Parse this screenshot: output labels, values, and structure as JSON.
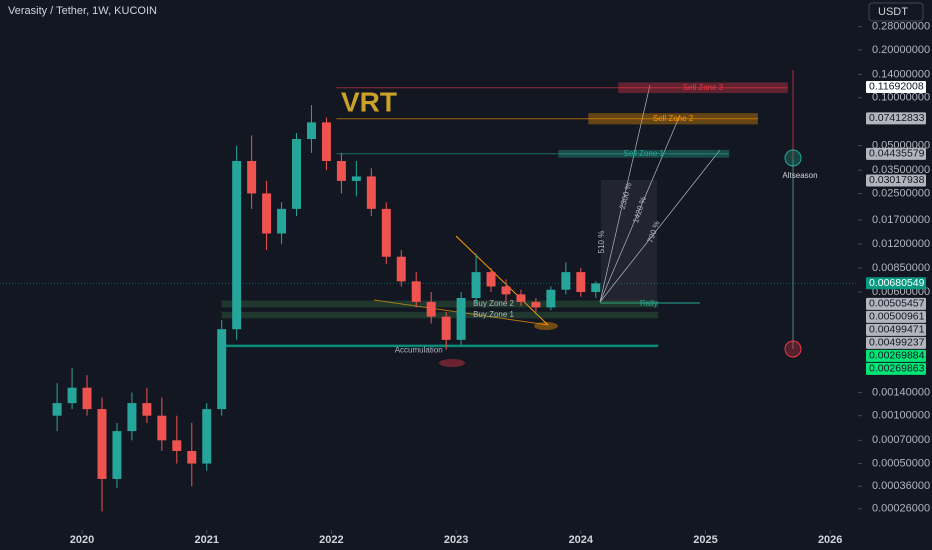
{
  "chart_data": {
    "type": "candlestick",
    "title": "Verasity / Tether, 1W, KUCOIN",
    "currency": "USDT",
    "symbol_label": "VRT",
    "log_scale": true,
    "up_color": "#26a69a",
    "down_color": "#ef5350",
    "xlim": [
      2019.342,
      2026.223
    ],
    "xticks": [
      2020,
      2021,
      2022,
      2023,
      2024,
      2025,
      2026
    ],
    "ylim": [
      0.000191,
      0.412
    ],
    "yticks": [
      {
        "value": 0.28,
        "label": "0.28000000"
      },
      {
        "value": 0.2,
        "label": "0.20000000"
      },
      {
        "value": 0.14,
        "label": "0.14000000"
      },
      {
        "value": 0.1,
        "label": "0.10000000"
      },
      {
        "value": 0.05,
        "label": "0.05000000"
      },
      {
        "value": 0.035,
        "label": "0.03500000"
      },
      {
        "value": 0.025,
        "label": "0.02500000"
      },
      {
        "value": 0.017,
        "label": "0.01700000"
      },
      {
        "value": 0.012,
        "label": "0.01200000"
      },
      {
        "value": 0.0085,
        "label": "0.00850000"
      },
      {
        "value": 0.006,
        "label": "0.00600000"
      },
      {
        "value": 0.0014,
        "label": "0.00140000"
      },
      {
        "value": 0.001,
        "label": "0.00100000"
      },
      {
        "value": 0.0007,
        "label": "0.00070000"
      },
      {
        "value": 0.0005,
        "label": "0.00050000"
      },
      {
        "value": 0.00036,
        "label": "0.00036000"
      },
      {
        "value": 0.00026,
        "label": "0.00026000"
      }
    ],
    "x": [
      2019.8,
      2019.92,
      2020.04,
      2020.16,
      2020.28,
      2020.4,
      2020.52,
      2020.64,
      2020.76,
      2020.88,
      2021.0,
      2021.12,
      2021.24,
      2021.36,
      2021.48,
      2021.6,
      2021.72,
      2021.84,
      2021.96,
      2022.08,
      2022.2,
      2022.32,
      2022.44,
      2022.56,
      2022.68,
      2022.8,
      2022.92,
      2023.04,
      2023.16,
      2023.28,
      2023.4,
      2023.52,
      2023.64,
      2023.76,
      2023.88,
      2024.0,
      2024.12
    ],
    "open": [
      0.001,
      0.0012,
      0.0015,
      0.0011,
      0.0004,
      0.0008,
      0.0012,
      0.001,
      0.0007,
      0.0006,
      0.0005,
      0.0011,
      0.0035,
      0.04,
      0.025,
      0.014,
      0.02,
      0.055,
      0.07,
      0.04,
      0.03,
      0.032,
      0.02,
      0.01,
      0.007,
      0.0052,
      0.0042,
      0.003,
      0.0055,
      0.008,
      0.0065,
      0.0058,
      0.0052,
      0.0048,
      0.0062,
      0.008,
      0.006
    ],
    "high": [
      0.0016,
      0.002,
      0.0018,
      0.0013,
      0.0009,
      0.0014,
      0.0015,
      0.0013,
      0.001,
      0.0009,
      0.0012,
      0.004,
      0.05,
      0.058,
      0.03,
      0.022,
      0.06,
      0.09,
      0.075,
      0.045,
      0.04,
      0.036,
      0.022,
      0.011,
      0.008,
      0.006,
      0.0045,
      0.006,
      0.0105,
      0.0085,
      0.0072,
      0.0062,
      0.0055,
      0.0065,
      0.0092,
      0.0085,
      0.007
    ],
    "low": [
      0.0008,
      0.0011,
      0.001,
      0.00025,
      0.00035,
      0.0007,
      0.0009,
      0.0006,
      0.0005,
      0.00036,
      0.00045,
      0.001,
      0.003,
      0.02,
      0.011,
      0.012,
      0.018,
      0.045,
      0.035,
      0.025,
      0.024,
      0.018,
      0.009,
      0.0065,
      0.0048,
      0.0038,
      0.0026,
      0.0028,
      0.005,
      0.006,
      0.0052,
      0.0049,
      0.0045,
      0.0046,
      0.0058,
      0.0056,
      0.0055
    ],
    "close": [
      0.0012,
      0.0015,
      0.0011,
      0.0004,
      0.0008,
      0.0012,
      0.001,
      0.0007,
      0.0006,
      0.0005,
      0.0011,
      0.0035,
      0.04,
      0.025,
      0.014,
      0.02,
      0.055,
      0.07,
      0.04,
      0.03,
      0.032,
      0.02,
      0.01,
      0.007,
      0.0052,
      0.0042,
      0.003,
      0.0055,
      0.008,
      0.0065,
      0.0058,
      0.0052,
      0.0048,
      0.0062,
      0.008,
      0.006,
      0.0068
    ],
    "zones": [
      {
        "label": "Sell Zone 3",
        "top": 0.125,
        "bottom": 0.107,
        "x": [
          2024.3,
          2025.66
        ],
        "color": "#f23645"
      },
      {
        "label": "Sell Zone 2",
        "top": 0.08,
        "bottom": 0.068,
        "x": [
          2024.06,
          2025.42
        ],
        "color": "#ff9800"
      },
      {
        "label": "Sell Zone 1",
        "top": 0.047,
        "bottom": 0.042,
        "x": [
          2023.82,
          2025.19
        ],
        "color": "#22ab94"
      },
      {
        "label": "Buy Zone 2",
        "top": 0.0053,
        "bottom": 0.0048,
        "x": [
          2021.12,
          2024.62
        ],
        "color": "#4caf50"
      },
      {
        "label": "Buy Zone 1",
        "top": 0.0045,
        "bottom": 0.0041,
        "x": [
          2021.12,
          2024.62
        ],
        "color": "#4caf50"
      },
      {
        "label": "Accumulation",
        "top": 0.0028,
        "bottom": 0.0027,
        "x": [
          2021.12,
          2024.62
        ],
        "color": "#089981"
      }
    ],
    "annotations": [
      "Rally",
      "Altseason",
      "510 %",
      "790 %",
      "1420 %",
      "2300 %"
    ],
    "price_labels": [
      {
        "value": 0.11692008,
        "label": "0.11692008",
        "color": "#ffffff"
      },
      {
        "value": 0.07412833,
        "label": "0.07412833",
        "color": "#b2b5be"
      },
      {
        "value": 0.04435579,
        "label": "0.04435579",
        "color": "#b2b5be"
      },
      {
        "value": 0.03017938,
        "label": "0.03017938",
        "color": "#b2b5be"
      },
      {
        "value": 0.00680549,
        "label": "0.00680549",
        "color": "#089981"
      },
      {
        "value": 0.00505457,
        "label": "0.00505457",
        "color": "#b2b5be"
      },
      {
        "value": 0.00500961,
        "label": "0.00500961",
        "color": "#b2b5be"
      },
      {
        "value": 0.00499471,
        "label": "0.00499471",
        "color": "#b2b5be"
      },
      {
        "value": 0.00499237,
        "label": "0.00499237",
        "color": "#b2b5be"
      },
      {
        "value": 0.00269884,
        "label": "0.00269884",
        "color": "#00e676"
      },
      {
        "value": 0.00269863,
        "label": "0.00269863",
        "color": "#00e676"
      }
    ]
  }
}
